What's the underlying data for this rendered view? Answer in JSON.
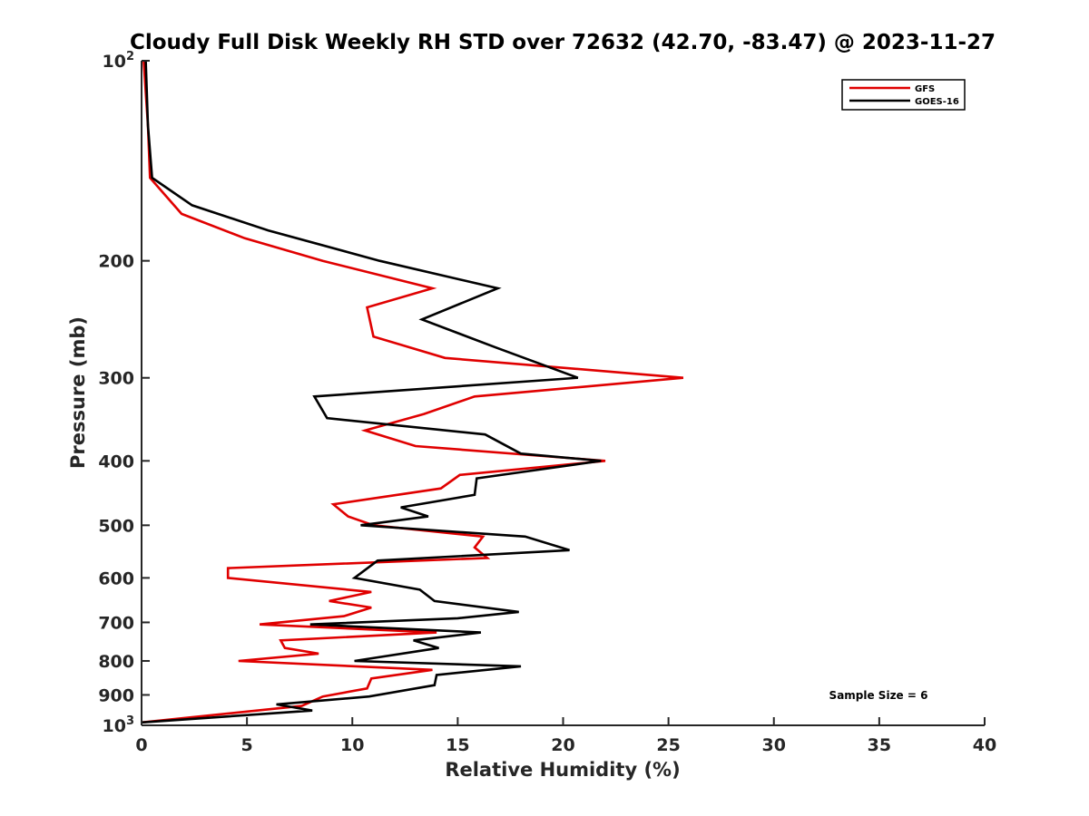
{
  "chart_data": {
    "type": "line",
    "title": "Cloudy Full Disk Weekly RH STD over 72632 (42.70, -83.47) @ 2023-11-27",
    "xlabel": "Relative Humidity (%)",
    "ylabel": "Pressure (mb)",
    "xlim": [
      0,
      40
    ],
    "ylim": [
      100,
      1000
    ],
    "y_scale": "log",
    "y_reversed": true,
    "x_ticks": [
      "0",
      "5",
      "10",
      "15",
      "20",
      "25",
      "30",
      "35",
      "40"
    ],
    "y_ticks": [
      {
        "value": 100,
        "base": "10",
        "exp": "2"
      },
      {
        "value": 200,
        "label": "200"
      },
      {
        "value": 300,
        "label": "300"
      },
      {
        "value": 400,
        "label": "400"
      },
      {
        "value": 500,
        "label": "500"
      },
      {
        "value": 600,
        "label": "600"
      },
      {
        "value": 700,
        "label": "700"
      },
      {
        "value": 800,
        "label": "800"
      },
      {
        "value": 900,
        "label": "900"
      },
      {
        "value": 1000,
        "base": "10",
        "exp": "3"
      }
    ],
    "grid": false,
    "legend_position": "top-right",
    "annotation": "Sample Size = 6",
    "series": [
      {
        "name": "GFS",
        "color": "#e00000",
        "points": [
          [
            0.1,
            100
          ],
          [
            0.3,
            125
          ],
          [
            0.4,
            150
          ],
          [
            1.9,
            170
          ],
          [
            4.9,
            185
          ],
          [
            8.6,
            200
          ],
          [
            13.8,
            220
          ],
          [
            10.7,
            235
          ],
          [
            11.0,
            260
          ],
          [
            14.4,
            280
          ],
          [
            25.7,
            300
          ],
          [
            15.8,
            320
          ],
          [
            13.4,
            340
          ],
          [
            10.6,
            360
          ],
          [
            13.0,
            380
          ],
          [
            22.0,
            400
          ],
          [
            15.1,
            420
          ],
          [
            14.2,
            440
          ],
          [
            9.1,
            465
          ],
          [
            9.8,
            485
          ],
          [
            11.0,
            500
          ],
          [
            16.2,
            520
          ],
          [
            15.8,
            540
          ],
          [
            16.4,
            560
          ],
          [
            4.1,
            580
          ],
          [
            4.1,
            600
          ],
          [
            10.9,
            630
          ],
          [
            8.9,
            650
          ],
          [
            10.9,
            665
          ],
          [
            9.6,
            685
          ],
          [
            5.6,
            705
          ],
          [
            14.0,
            725
          ],
          [
            6.6,
            745
          ],
          [
            6.8,
            765
          ],
          [
            8.4,
            780
          ],
          [
            4.6,
            800
          ],
          [
            13.8,
            825
          ],
          [
            10.9,
            850
          ],
          [
            10.7,
            880
          ],
          [
            8.6,
            905
          ],
          [
            7.6,
            935
          ],
          [
            0.0,
            990
          ]
        ]
      },
      {
        "name": "GOES-16",
        "color": "#000000",
        "points": [
          [
            0.2,
            100
          ],
          [
            0.3,
            125
          ],
          [
            0.5,
            150
          ],
          [
            2.4,
            165
          ],
          [
            6.0,
            180
          ],
          [
            11.3,
            200
          ],
          [
            16.9,
            220
          ],
          [
            13.3,
            245
          ],
          [
            16.8,
            270
          ],
          [
            20.7,
            300
          ],
          [
            8.2,
            320
          ],
          [
            8.8,
            345
          ],
          [
            16.3,
            365
          ],
          [
            18.0,
            390
          ],
          [
            21.8,
            400
          ],
          [
            15.9,
            425
          ],
          [
            15.8,
            450
          ],
          [
            12.3,
            470
          ],
          [
            13.6,
            485
          ],
          [
            10.4,
            500
          ],
          [
            18.2,
            520
          ],
          [
            20.3,
            545
          ],
          [
            11.2,
            565
          ],
          [
            10.1,
            600
          ],
          [
            13.2,
            625
          ],
          [
            13.9,
            650
          ],
          [
            17.9,
            675
          ],
          [
            15.0,
            690
          ],
          [
            8.0,
            705
          ],
          [
            16.1,
            725
          ],
          [
            12.9,
            745
          ],
          [
            14.1,
            765
          ],
          [
            10.1,
            800
          ],
          [
            18.0,
            815
          ],
          [
            14.0,
            840
          ],
          [
            13.9,
            870
          ],
          [
            10.8,
            905
          ],
          [
            6.4,
            930
          ],
          [
            8.1,
            950
          ],
          [
            0.0,
            990
          ]
        ]
      }
    ]
  }
}
